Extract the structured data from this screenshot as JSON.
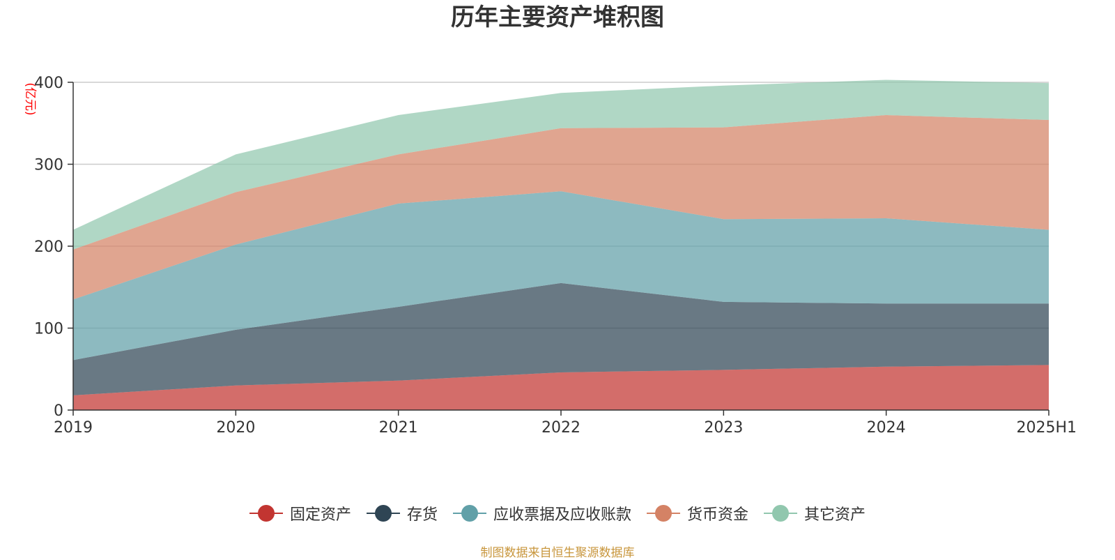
{
  "chart_data": {
    "type": "area",
    "title": "历年主要资产堆积图",
    "ylabel": "(亿元)",
    "xlabel": "",
    "stacked": true,
    "categories": [
      "2019",
      "2020",
      "2021",
      "2022",
      "2023",
      "2024",
      "2025H1"
    ],
    "ylim": [
      0,
      400
    ],
    "yticks": [
      0,
      100,
      200,
      300,
      400
    ],
    "grid": true,
    "legend_position": "bottom",
    "series": [
      {
        "name": "固定资产",
        "color": "#c23531",
        "values": [
          18,
          30,
          36,
          46,
          49,
          53,
          55
        ]
      },
      {
        "name": "存货",
        "color": "#2f4554",
        "values": [
          43,
          68,
          90,
          109,
          83,
          77,
          75
        ]
      },
      {
        "name": "应收票据及应收账款",
        "color": "#61a0a8",
        "values": [
          74,
          104,
          126,
          112,
          101,
          104,
          90
        ]
      },
      {
        "name": "货币资金",
        "color": "#d48265",
        "values": [
          61,
          64,
          60,
          77,
          112,
          126,
          134
        ]
      },
      {
        "name": "其它资产",
        "color": "#91c7ae",
        "values": [
          24,
          46,
          48,
          43,
          51,
          43,
          45
        ]
      }
    ]
  },
  "source_note": "制图数据来自恒生聚源数据库"
}
